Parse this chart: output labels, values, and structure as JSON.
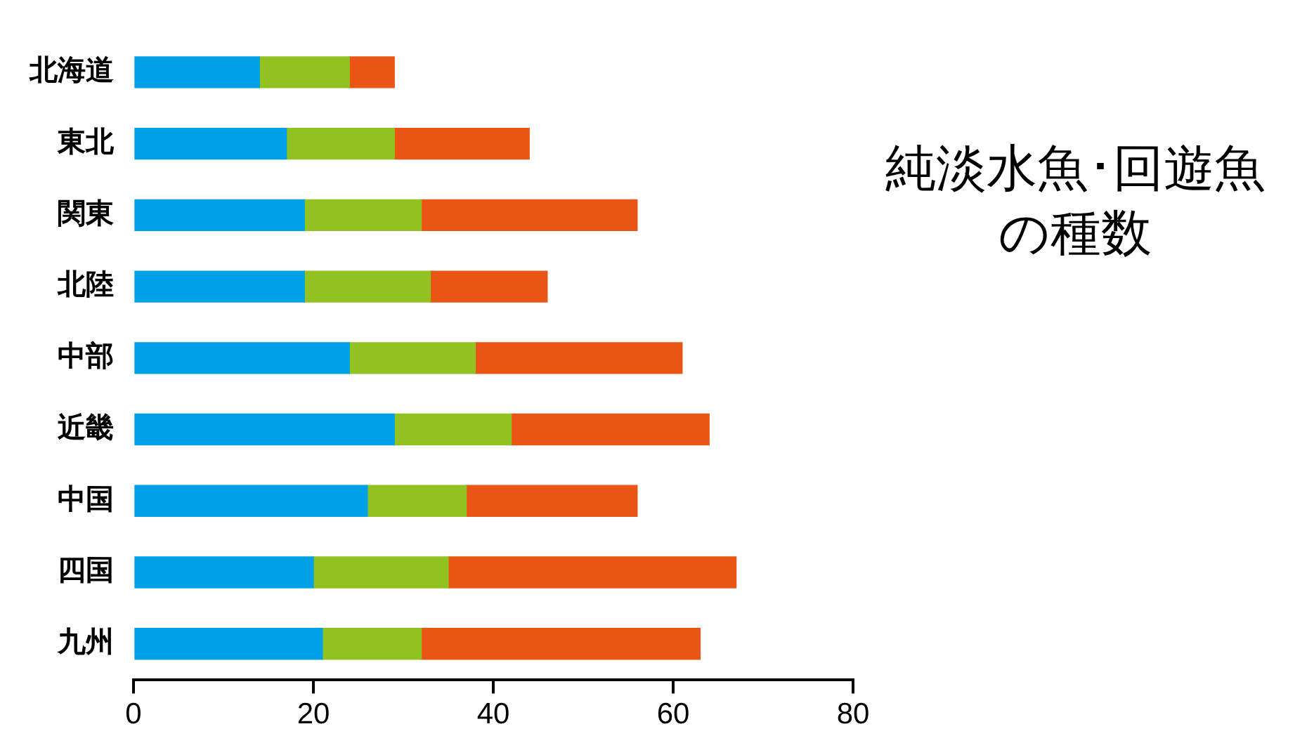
{
  "chart_data": {
    "type": "bar",
    "orientation": "horizontal",
    "stacked": true,
    "title": "純淡水魚･回遊魚の種数",
    "categories": [
      "北海道",
      "東北",
      "関東",
      "北陸",
      "中部",
      "近畿",
      "中国",
      "四国",
      "九州"
    ],
    "series": [
      {
        "color": "#00a0e6",
        "values": [
          14,
          17,
          19,
          19,
          24,
          29,
          26,
          20,
          21
        ]
      },
      {
        "color": "#92c221",
        "values": [
          10,
          12,
          13,
          14,
          14,
          13,
          11,
          15,
          11
        ]
      },
      {
        "color": "#e95514",
        "values": [
          5,
          15,
          24,
          13,
          23,
          22,
          19,
          32,
          31
        ]
      }
    ],
    "xlim": [
      0,
      80
    ],
    "xticks": [
      0,
      20,
      40,
      60,
      80
    ],
    "grid": false,
    "legend": false
  }
}
